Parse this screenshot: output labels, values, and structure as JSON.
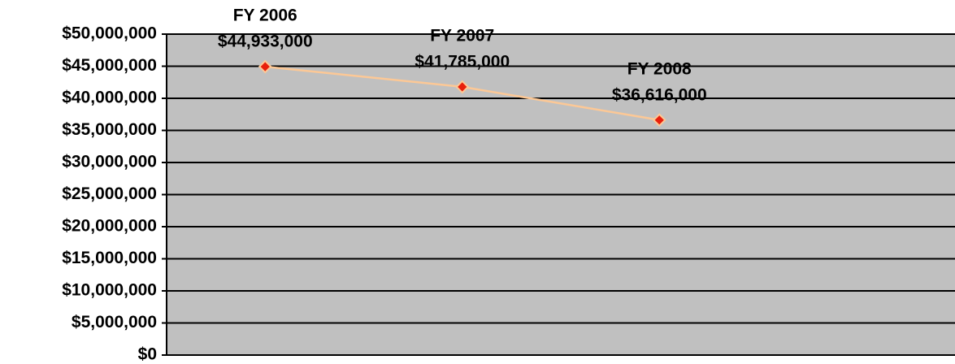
{
  "chart_data": {
    "type": "line",
    "categories": [
      "FY 2006",
      "FY 2007",
      "FY 2008",
      null
    ],
    "series": [
      {
        "name": null,
        "color": "#fcc896",
        "marker_color": "#e8200c",
        "values": [
          44933000,
          41785000,
          36616000,
          null
        ],
        "value_labels": [
          "$44,933,000",
          "$41,785,000",
          "$36,616,000",
          null
        ]
      }
    ],
    "ylim": [
      0,
      50000000
    ],
    "yticks": [
      {
        "value": 0,
        "label": "$0"
      },
      {
        "value": 5000000,
        "label": "$5,000,000"
      },
      {
        "value": 10000000,
        "label": "$10,000,000"
      },
      {
        "value": 15000000,
        "label": "$15,000,000"
      },
      {
        "value": 20000000,
        "label": "$20,000,000"
      },
      {
        "value": 25000000,
        "label": "$25,000,000"
      },
      {
        "value": 30000000,
        "label": "$30,000,000"
      },
      {
        "value": 35000000,
        "label": "$35,000,000"
      },
      {
        "value": 40000000,
        "label": "$40,000,000"
      },
      {
        "value": 45000000,
        "label": "$45,000,000"
      },
      {
        "value": 50000000,
        "label": "$50,000,000"
      }
    ],
    "grid": true,
    "background": "#c0c0c0"
  }
}
